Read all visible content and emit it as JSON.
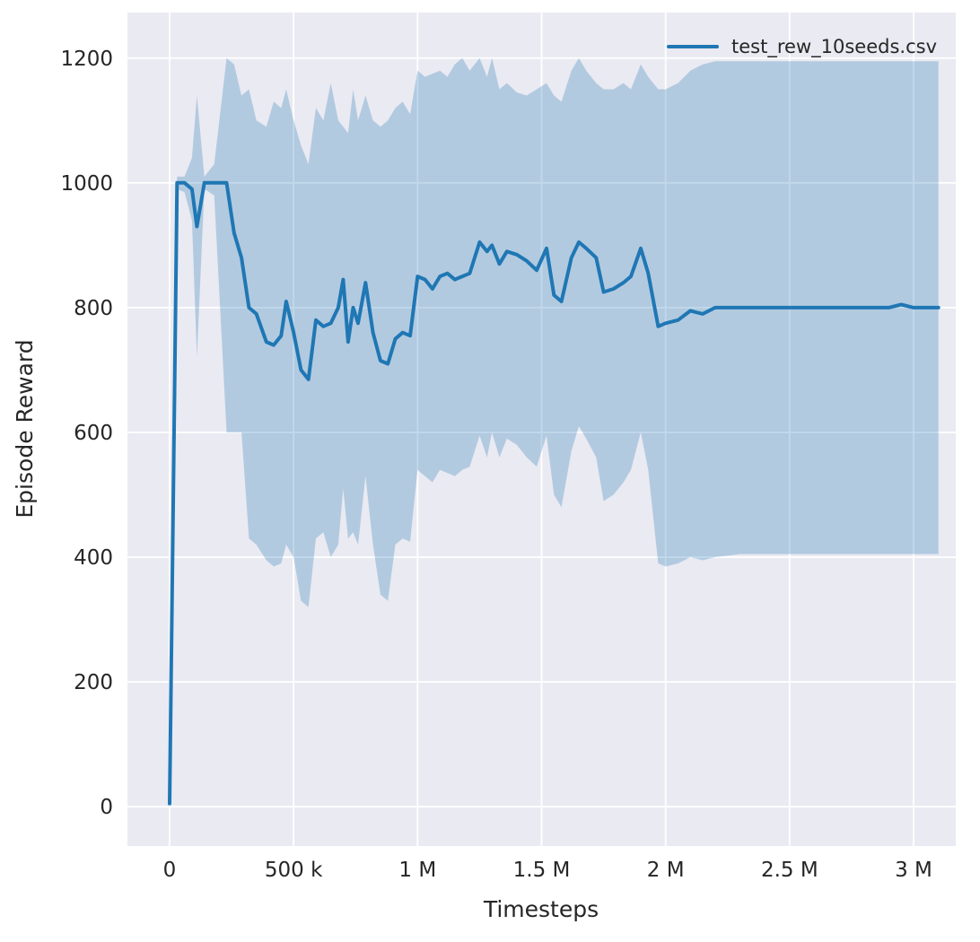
{
  "chart_data": {
    "type": "line",
    "title": "",
    "xlabel": "Timesteps",
    "ylabel": "Episode Reward",
    "legend_position": "upper right",
    "grid": true,
    "background": "#eaeaf2",
    "grid_color": "#ffffff",
    "text_color": "#262626",
    "line_color": "#1f77b4",
    "band_color": "#1f77b4",
    "band_opacity": 0.28,
    "xlim": [
      -170000,
      3170000
    ],
    "ylim": [
      -63,
      1273
    ],
    "x_ticks": [
      {
        "value": 0,
        "label": "0"
      },
      {
        "value": 500000,
        "label": "500 k"
      },
      {
        "value": 1000000,
        "label": "1 M"
      },
      {
        "value": 1500000,
        "label": "1.5 M"
      },
      {
        "value": 2000000,
        "label": "2 M"
      },
      {
        "value": 2500000,
        "label": "2.5 M"
      },
      {
        "value": 3000000,
        "label": "3 M"
      }
    ],
    "y_ticks": [
      {
        "value": 0,
        "label": "0"
      },
      {
        "value": 200,
        "label": "200"
      },
      {
        "value": 400,
        "label": "400"
      },
      {
        "value": 600,
        "label": "600"
      },
      {
        "value": 800,
        "label": "800"
      },
      {
        "value": 1000,
        "label": "1000"
      },
      {
        "value": 1200,
        "label": "1200"
      }
    ],
    "series": [
      {
        "name": "test_rew_10seeds.csv",
        "x": [
          0,
          30000,
          60000,
          90000,
          110000,
          140000,
          180000,
          230000,
          260000,
          290000,
          320000,
          350000,
          390000,
          420000,
          450000,
          470000,
          500000,
          530000,
          560000,
          590000,
          620000,
          650000,
          680000,
          700000,
          720000,
          740000,
          760000,
          790000,
          820000,
          850000,
          880000,
          910000,
          940000,
          970000,
          1000000,
          1030000,
          1060000,
          1090000,
          1120000,
          1150000,
          1180000,
          1210000,
          1250000,
          1280000,
          1300000,
          1330000,
          1360000,
          1400000,
          1440000,
          1480000,
          1520000,
          1550000,
          1580000,
          1620000,
          1650000,
          1680000,
          1720000,
          1750000,
          1790000,
          1830000,
          1860000,
          1900000,
          1930000,
          1970000,
          2000000,
          2050000,
          2100000,
          2150000,
          2200000,
          2300000,
          2400000,
          2500000,
          2600000,
          2700000,
          2800000,
          2900000,
          2950000,
          3000000,
          3050000,
          3100000
        ],
        "mean": [
          5,
          1000,
          1000,
          990,
          930,
          1000,
          1000,
          1000,
          920,
          880,
          800,
          790,
          745,
          740,
          755,
          810,
          760,
          700,
          685,
          780,
          770,
          775,
          800,
          845,
          745,
          800,
          775,
          840,
          760,
          715,
          710,
          750,
          760,
          755,
          850,
          845,
          830,
          850,
          855,
          845,
          850,
          855,
          905,
          890,
          900,
          870,
          890,
          885,
          875,
          860,
          895,
          820,
          810,
          880,
          905,
          895,
          880,
          825,
          830,
          840,
          850,
          895,
          855,
          770,
          775,
          780,
          795,
          790,
          800,
          800,
          800,
          800,
          800,
          800,
          800,
          800,
          805,
          800,
          800,
          800
        ],
        "lower": [
          5,
          990,
          985,
          940,
          720,
          990,
          980,
          600,
          600,
          600,
          430,
          420,
          395,
          385,
          390,
          420,
          400,
          330,
          320,
          430,
          440,
          400,
          420,
          510,
          430,
          440,
          420,
          530,
          420,
          340,
          330,
          420,
          430,
          425,
          540,
          530,
          520,
          540,
          535,
          530,
          540,
          545,
          595,
          560,
          600,
          560,
          590,
          580,
          560,
          545,
          595,
          500,
          480,
          570,
          610,
          590,
          560,
          490,
          500,
          520,
          540,
          600,
          540,
          390,
          385,
          390,
          400,
          395,
          400,
          405,
          405,
          405,
          405,
          405,
          405,
          405,
          405,
          405,
          405,
          405
        ],
        "upper": [
          5,
          1010,
          1010,
          1040,
          1140,
          1010,
          1030,
          1200,
          1190,
          1140,
          1150,
          1100,
          1090,
          1130,
          1120,
          1150,
          1100,
          1060,
          1030,
          1120,
          1100,
          1160,
          1100,
          1090,
          1080,
          1150,
          1100,
          1140,
          1100,
          1090,
          1100,
          1120,
          1130,
          1110,
          1180,
          1170,
          1175,
          1180,
          1170,
          1190,
          1200,
          1180,
          1200,
          1170,
          1200,
          1150,
          1160,
          1145,
          1140,
          1150,
          1160,
          1140,
          1130,
          1180,
          1200,
          1180,
          1160,
          1150,
          1150,
          1160,
          1150,
          1190,
          1170,
          1150,
          1150,
          1160,
          1180,
          1190,
          1195,
          1195,
          1195,
          1195,
          1195,
          1195,
          1195,
          1195,
          1195,
          1195,
          1195,
          1195
        ]
      }
    ]
  }
}
